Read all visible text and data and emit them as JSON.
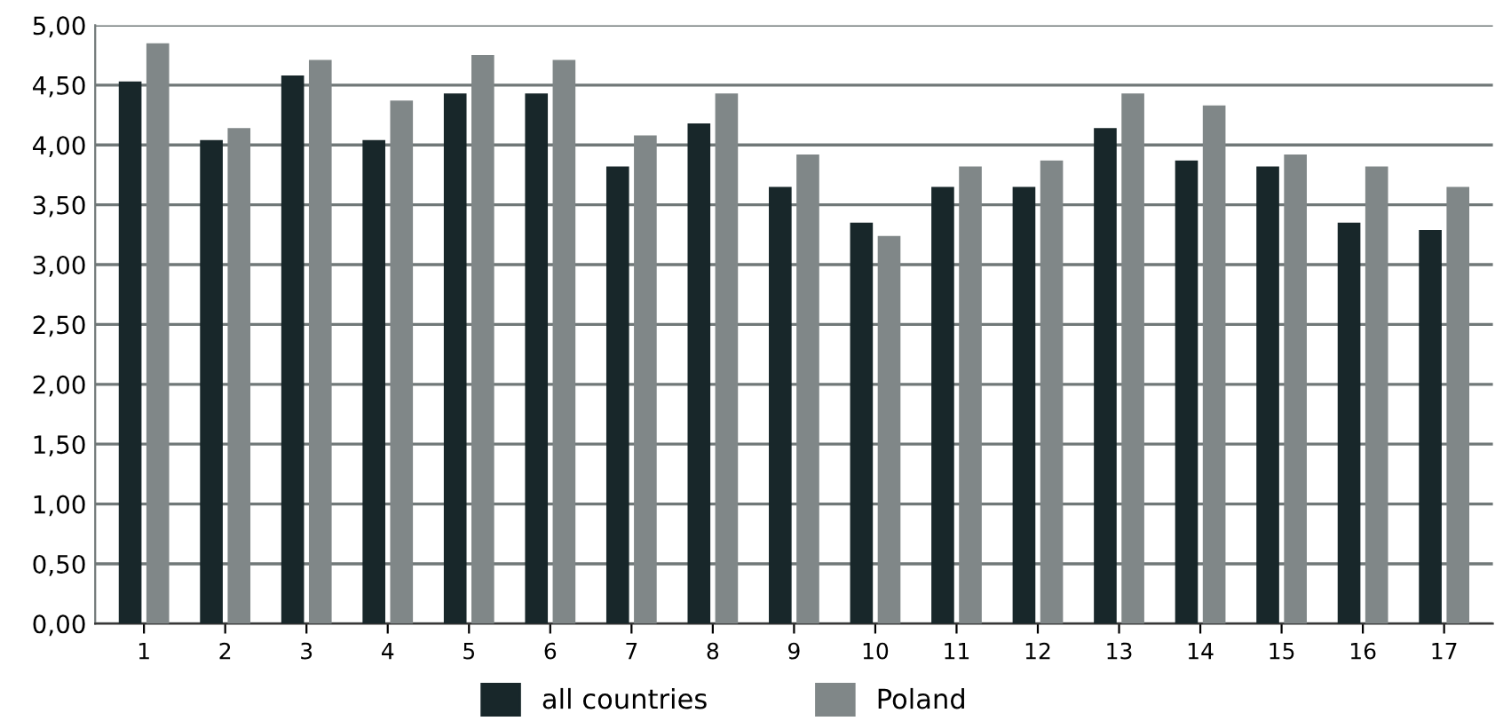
{
  "chart_data": {
    "type": "bar",
    "categories": [
      "1",
      "2",
      "3",
      "4",
      "5",
      "6",
      "7",
      "8",
      "9",
      "10",
      "11",
      "12",
      "13",
      "14",
      "15",
      "16",
      "17"
    ],
    "series": [
      {
        "name": "all countries",
        "color": "#18272a",
        "values": [
          4.53,
          4.04,
          4.58,
          4.04,
          4.43,
          4.43,
          3.82,
          4.18,
          3.65,
          3.35,
          3.65,
          3.65,
          4.14,
          3.87,
          3.82,
          3.35,
          3.29
        ]
      },
      {
        "name": "Poland",
        "color": "#808788",
        "values": [
          4.85,
          4.14,
          4.71,
          4.37,
          4.75,
          4.71,
          4.08,
          4.43,
          3.92,
          3.24,
          3.82,
          3.87,
          4.43,
          4.33,
          3.92,
          3.82,
          3.65
        ]
      }
    ],
    "ylim": [
      0,
      5
    ],
    "yticks": [
      {
        "value": 0,
        "label": "0,00"
      },
      {
        "value": 0.5,
        "label": "0,50"
      },
      {
        "value": 1,
        "label": "1,00"
      },
      {
        "value": 1.5,
        "label": "1,50"
      },
      {
        "value": 2,
        "label": "2,00"
      },
      {
        "value": 2.5,
        "label": "2,50"
      },
      {
        "value": 3,
        "label": "3,00"
      },
      {
        "value": 3.5,
        "label": "3,50"
      },
      {
        "value": 4,
        "label": "4,00"
      },
      {
        "value": 4.5,
        "label": "4,50"
      },
      {
        "value": 5,
        "label": "5,00"
      }
    ],
    "grid": "y",
    "legend": "bottom"
  }
}
